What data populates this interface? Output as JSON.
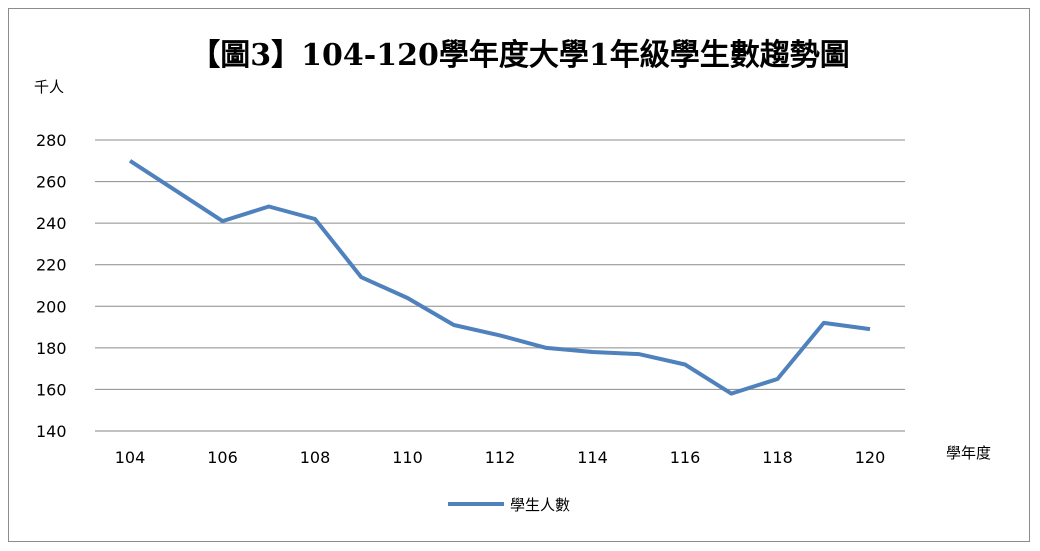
{
  "chart_data": {
    "type": "line",
    "title": "【圖3】104-120學年度大學1年級學生數趨勢圖",
    "ylabel": "千人",
    "xlabel": "學年度",
    "ylim": [
      140,
      280
    ],
    "yticks": [
      140,
      160,
      180,
      200,
      220,
      240,
      260,
      280
    ],
    "x": [
      104,
      105,
      106,
      107,
      108,
      109,
      110,
      111,
      112,
      113,
      114,
      115,
      116,
      117,
      118,
      119,
      120
    ],
    "xticks": [
      104,
      106,
      108,
      110,
      112,
      114,
      116,
      118,
      120
    ],
    "series": [
      {
        "name": "學生人數",
        "values": [
          270,
          255.5,
          241,
          248,
          242,
          214,
          204,
          191,
          186,
          180,
          178,
          177,
          172,
          158,
          165,
          192,
          189
        ]
      }
    ],
    "grid": "horizontal",
    "legend": "bottom",
    "line_color": "#4f81bd"
  }
}
